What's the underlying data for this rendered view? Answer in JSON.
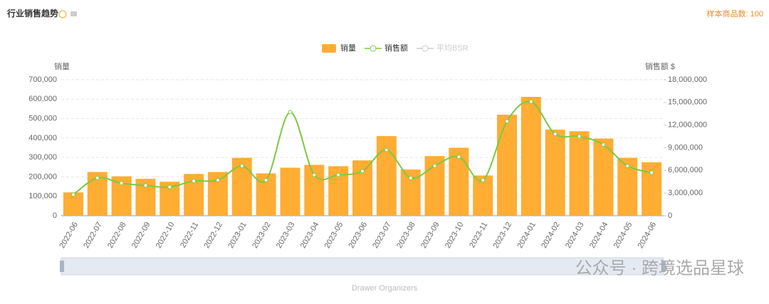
{
  "title": "行业销售趋势",
  "sample_count": "样本商品数: 100",
  "watermark": "公众号 · 跨境选品星球",
  "chart_data": {
    "type": "bar_line",
    "y_label": "销量",
    "y2_label": "销售额 $",
    "slider_label": "Drawer Organizers",
    "categories": [
      "2022-06",
      "2022-07",
      "2022-08",
      "2022-09",
      "2022-10",
      "2022-11",
      "2022-12",
      "2023-01",
      "2023-02",
      "2023-03",
      "2023-04",
      "2023-05",
      "2023-06",
      "2023-07",
      "2023-08",
      "2023-09",
      "2023-10",
      "2023-11",
      "2023-12",
      "2024-01",
      "2024-02",
      "2024-03",
      "2024-04",
      "2024-05",
      "2024-06"
    ],
    "series": [
      {
        "name": "销量",
        "color": "#ffad33",
        "kind": "bar",
        "values": [
          120000,
          225000,
          203000,
          190000,
          175000,
          215000,
          225000,
          298000,
          218000,
          247000,
          262000,
          255000,
          285000,
          410000,
          238000,
          307000,
          350000,
          207000,
          520000,
          612000,
          443000,
          435000,
          397000,
          298000,
          275000
        ]
      },
      {
        "name": "销售额",
        "color": "#7ac943",
        "kind": "line",
        "axis": "y2",
        "values": [
          2800000,
          5000000,
          4300000,
          4000000,
          3800000,
          4600000,
          4700000,
          6600000,
          4700000,
          13700000,
          5400000,
          5400000,
          5900000,
          8700000,
          5000000,
          6600000,
          7800000,
          4700000,
          12500000,
          15100000,
          10800000,
          10500000,
          9400000,
          6600000,
          5700000
        ]
      },
      {
        "name": "平均BSR",
        "color": "#cccccc",
        "kind": "line",
        "hidden": true,
        "values": [
          null,
          null,
          null,
          null,
          null,
          null,
          null,
          null,
          null,
          null,
          null,
          null,
          null,
          null,
          null,
          null,
          null,
          null,
          null,
          null,
          null,
          null,
          null,
          null,
          null
        ]
      }
    ],
    "ylim": [
      0,
      700000
    ],
    "yticks": [
      0,
      {
        "value": 100000,
        "label": "100,000"
      },
      {
        "value": 200000,
        "label": "200,000"
      },
      {
        "value": 300000,
        "label": "300,000"
      },
      {
        "value": 400000,
        "label": "400,000"
      },
      {
        "value": 500000,
        "label": "500,000"
      },
      {
        "value": 600000,
        "label": "600,000"
      },
      {
        "value": 700000,
        "label": "700,000"
      }
    ],
    "y2lim": [
      0,
      18000000
    ],
    "y2ticks": [
      0,
      {
        "value": 3000000,
        "label": "3,000,000"
      },
      {
        "value": 6000000,
        "label": "6,000,000"
      },
      {
        "value": 9000000,
        "label": "9,000,000"
      },
      {
        "value": 12000000,
        "label": "12,000,000"
      },
      {
        "value": 15000000,
        "label": "15,000,000"
      },
      {
        "value": 18000000,
        "label": "18,000,000"
      }
    ],
    "grid": true
  }
}
